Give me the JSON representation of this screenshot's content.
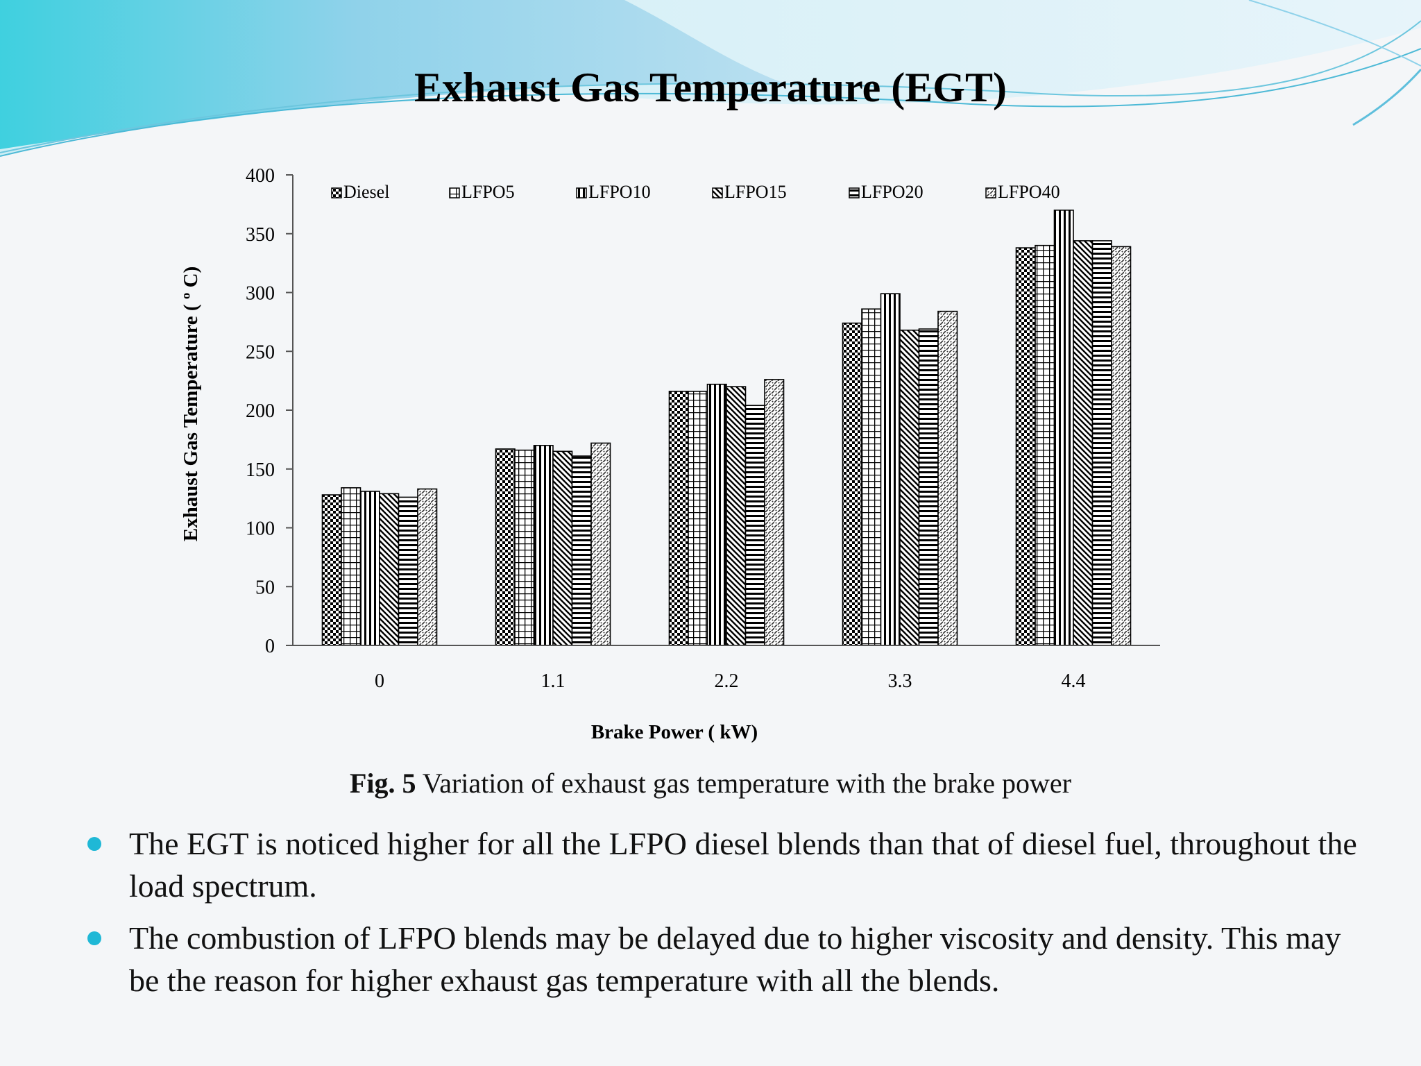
{
  "slide": {
    "title": "Exhaust Gas Temperature (EGT)",
    "accent_color": "#1fb8d6"
  },
  "chart_data": {
    "type": "bar",
    "title": "",
    "xlabel": "Brake Power ( kW)",
    "ylabel": "Exhaust Gas Temperature ( º C)",
    "ylim": [
      0,
      400
    ],
    "yticks": [
      0,
      50,
      100,
      150,
      200,
      250,
      300,
      350,
      400
    ],
    "categories": [
      "0",
      "1.1",
      "2.2",
      "3.3",
      "4.4"
    ],
    "legend_position": "top",
    "grid": false,
    "series": [
      {
        "name": "Diesel",
        "pattern": "checker",
        "values": [
          128,
          167,
          216,
          274,
          338
        ]
      },
      {
        "name": "LFPO5",
        "pattern": "grid",
        "values": [
          134,
          166,
          216,
          286,
          340
        ]
      },
      {
        "name": "LFPO10",
        "pattern": "vertical",
        "values": [
          131,
          170,
          222,
          299,
          370
        ]
      },
      {
        "name": "LFPO15",
        "pattern": "diagonal",
        "values": [
          129,
          165,
          220,
          268,
          344
        ]
      },
      {
        "name": "LFPO20",
        "pattern": "horizontal",
        "values": [
          126,
          161,
          204,
          269,
          344
        ]
      },
      {
        "name": "LFPO40",
        "pattern": "dots",
        "values": [
          133,
          172,
          226,
          284,
          339
        ]
      }
    ]
  },
  "caption": {
    "label": "Fig. 5",
    "text": " Variation of exhaust gas temperature with the brake power"
  },
  "bullets": [
    "The EGT is noticed higher for all the LFPO diesel blends than that of diesel fuel, throughout the load spectrum.",
    "The combustion of LFPO blends may be delayed due to higher viscosity and density. This may be the reason for higher exhaust gas temperature with all the blends."
  ]
}
